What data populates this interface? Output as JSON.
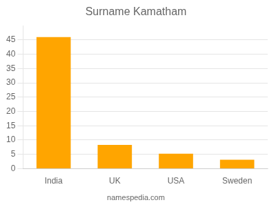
{
  "chart_data": {
    "type": "bar",
    "title": "Surname Kamatham",
    "categories": [
      "India",
      "UK",
      "USA",
      "Sweden"
    ],
    "values": [
      46,
      8.3,
      5.2,
      3.1
    ],
    "color": "#FFA500",
    "ylim": [
      0,
      50
    ],
    "yticks": [
      0,
      5,
      10,
      15,
      20,
      25,
      30,
      35,
      40,
      45
    ],
    "grid": true,
    "annotations": [
      "namespedia.com"
    ]
  }
}
